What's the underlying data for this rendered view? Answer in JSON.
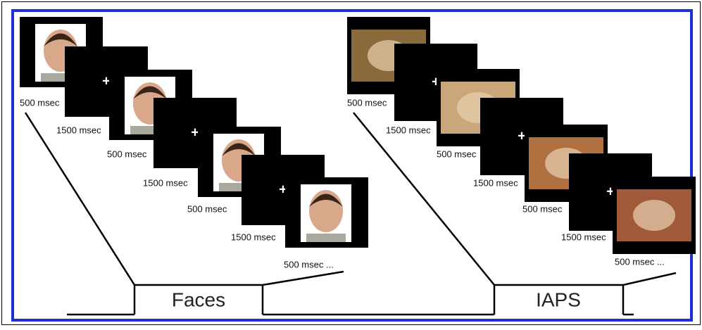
{
  "fixation_mark": "+",
  "panels": [
    {
      "label": "Faces",
      "durations": [
        "500 msec",
        "1500 msec",
        "500 msec",
        "1500 msec",
        "500 msec",
        "1500 msec",
        "500 msec ..."
      ]
    },
    {
      "label": "IAPS",
      "durations": [
        "500 msec",
        "1500 msec",
        "500 msec",
        "1500 msec",
        "500 msec",
        "1500 msec",
        "500 msec ..."
      ]
    }
  ]
}
